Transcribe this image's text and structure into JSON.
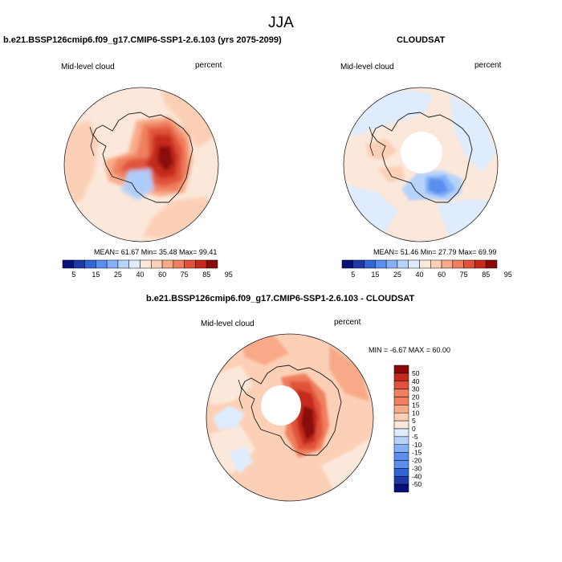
{
  "title": "JJA",
  "colors": {
    "palette": [
      "#08107a",
      "#1f3aa8",
      "#3266d4",
      "#5a8fef",
      "#86b1f6",
      "#b8d3fa",
      "#deecfd",
      "#fbe8da",
      "#fcd0b7",
      "#f8aa88",
      "#ef7f5e",
      "#e0533a",
      "#c52a1c",
      "#8a0a0a"
    ],
    "land_line": "#1a1a1a"
  },
  "chart_data": [
    {
      "type": "heatmap",
      "projection": "south-polar-stereographic",
      "title": "b.e21.BSSP126cmip6.f09_g17.CMIP6-SSP1-2.6.103 (yrs 2075-2099)",
      "field_label": "Mid-level cloud",
      "units": "percent",
      "stats": {
        "mean": 61.67,
        "min": 35.48,
        "max": 99.41
      },
      "stats_text": "MEAN=  61.67  Min=  35.48  Max=  99.41",
      "colorbar": {
        "orientation": "horizontal",
        "labels": [
          "5",
          "15",
          "25",
          "40",
          "60",
          "75",
          "85",
          "95"
        ]
      }
    },
    {
      "type": "heatmap",
      "projection": "south-polar-stereographic",
      "title": "CLOUDSAT",
      "field_label": "Mid-level cloud",
      "units": "percent",
      "stats": {
        "mean": 51.46,
        "min": 27.79,
        "max": 69.99
      },
      "stats_text": "MEAN=  51.46  Min=  27.79  Max=  69.99",
      "colorbar": {
        "orientation": "horizontal",
        "labels": [
          "5",
          "15",
          "25",
          "40",
          "60",
          "75",
          "85",
          "95"
        ]
      }
    },
    {
      "type": "heatmap",
      "projection": "south-polar-stereographic",
      "title": "b.e21.BSSP126cmip6.f09_g17.CMIP6-SSP1-2.6.103 - CLOUDSAT",
      "field_label": "Mid-level cloud",
      "units": "percent",
      "stats": {
        "min": -6.67,
        "max": 60.0
      },
      "stats_text": "MIN =  -6.67 MAX =  60.00",
      "colorbar": {
        "orientation": "vertical",
        "labels": [
          "50",
          "40",
          "30",
          "20",
          "15",
          "10",
          "5",
          "0",
          "-5",
          "-10",
          "-15",
          "-20",
          "-30",
          "-40",
          "-50"
        ]
      }
    }
  ]
}
